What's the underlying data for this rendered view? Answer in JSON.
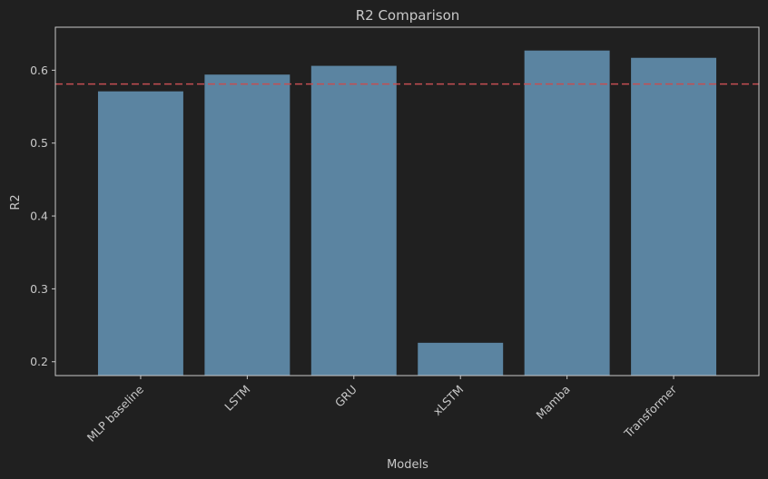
{
  "chart_data": {
    "type": "bar",
    "title": "R2 Comparison",
    "xlabel": "Models",
    "ylabel": "R2",
    "categories": [
      "MLP baseline",
      "LSTM",
      "GRU",
      "xLSTM",
      "Mamba",
      "Transformer"
    ],
    "values": [
      0.571,
      0.594,
      0.606,
      0.226,
      0.627,
      0.617
    ],
    "ylim": [
      0.181,
      0.659
    ],
    "yticks": [
      "0.2",
      "0.3",
      "0.4",
      "0.5",
      "0.6"
    ],
    "reference_line": {
      "value": 0.581,
      "style": "dashed",
      "color": "#c44e52"
    },
    "bar_color": "#5b84a1",
    "grid": false,
    "legend": "none"
  }
}
